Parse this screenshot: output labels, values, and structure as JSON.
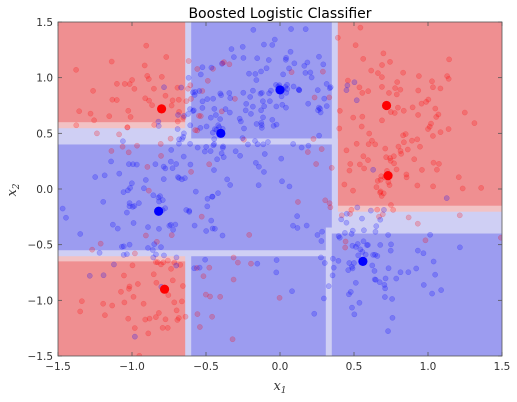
{
  "chart_data": {
    "type": "scatter",
    "title": "Boosted Logistic Classifier",
    "xlabel": "x",
    "xlabel_sub": "1",
    "ylabel": "x",
    "ylabel_sub": "2",
    "xlim": [
      -1.5,
      1.5
    ],
    "ylim": [
      -1.5,
      1.5
    ],
    "xticks": [
      -1.5,
      -1.0,
      -0.5,
      0.0,
      0.5,
      1.0,
      1.5
    ],
    "yticks": [
      -1.5,
      -1.0,
      -0.5,
      0.0,
      0.5,
      1.0,
      1.5
    ],
    "xtick_labels": [
      "−1.5",
      "−1.0",
      "−0.5",
      "0.0",
      "0.5",
      "1.0",
      "1.5"
    ],
    "ytick_labels": [
      "−1.5",
      "−1.0",
      "−0.5",
      "0.0",
      "0.5",
      "1.0",
      "1.5"
    ],
    "grid": false,
    "colors": {
      "red": "#ff0000",
      "blue": "#0000ff",
      "red_region": "#ef8f91",
      "blue_region": "#9c9cf0",
      "pale_red": "#f2c2c4",
      "pale_blue": "#cfcff4"
    },
    "decision_regions": [
      {
        "class": "red",
        "x": [
          -1.5,
          -0.6
        ],
        "y": [
          0.6,
          1.5
        ]
      },
      {
        "class": "red",
        "x": [
          0.35,
          1.5
        ],
        "y": [
          -0.15,
          1.5
        ]
      },
      {
        "class": "red",
        "x": [
          -1.5,
          -0.3
        ],
        "y": [
          -1.5,
          -0.65
        ]
      },
      {
        "class": "blue",
        "x": [
          -0.6,
          0.35
        ],
        "y": [
          -1.5,
          1.5
        ]
      },
      {
        "class": "blue",
        "x": [
          -1.5,
          0.35
        ],
        "y": [
          -0.55,
          0.4
        ]
      },
      {
        "class": "blue",
        "x": [
          0.35,
          1.5
        ],
        "y": [
          -1.5,
          -0.4
        ]
      }
    ],
    "centers": [
      {
        "class": "red",
        "x": -0.8,
        "y": 0.72
      },
      {
        "class": "red",
        "x": 0.72,
        "y": 0.75
      },
      {
        "class": "red",
        "x": 0.73,
        "y": 0.12
      },
      {
        "class": "red",
        "x": -0.78,
        "y": -0.9
      },
      {
        "class": "blue",
        "x": 0.0,
        "y": 0.89
      },
      {
        "class": "blue",
        "x": -0.4,
        "y": 0.5
      },
      {
        "class": "blue",
        "x": -0.82,
        "y": -0.2
      },
      {
        "class": "blue",
        "x": 0.56,
        "y": -0.65
      }
    ]
  }
}
